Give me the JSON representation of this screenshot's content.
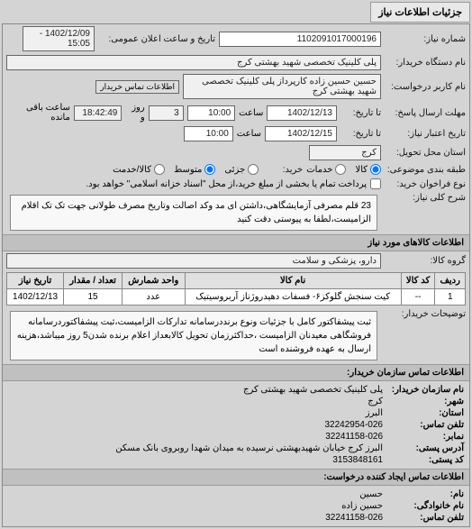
{
  "tab": {
    "title": "جزئیات اطلاعات نیاز"
  },
  "header": {
    "request_no_label": "شماره نیاز:",
    "request_no": "1102091017000196",
    "announce_label": "تاریخ و ساعت اعلان عمومی:",
    "announce_value": "1402/12/09 - 15:05",
    "buyer_label": "نام دستگاه خریدار:",
    "buyer_value": "پلی کلینیک تخصصی شهید بهشتی کرج",
    "requester_label": "نام کاربر درخواست:",
    "requester_value": "حسین حسین زاده کارپرداز پلی کلینیک تخصصی شهید بهشتی کرج",
    "contact_btn": "اطلاعات تماس خریدار",
    "deadline_send_label": "مهلت ارسال پاسخ:",
    "until_label": "تا تاریخ:",
    "deadline_date": "1402/12/13",
    "time_label": "ساعت",
    "deadline_time": "10:00",
    "days_remain_label": "روز و",
    "days_remain": "3",
    "time_remain": "18:42:49",
    "time_remain_label": "ساعت باقی مانده",
    "validity_label": "تاریخ اعتبار نیاز:",
    "validity_date": "1402/12/15",
    "validity_time": "10:00",
    "delivery_label": "استان محل تحویل:",
    "delivery_value": "کرج",
    "budget_label": "طبقه بندی موضوعی:",
    "budget_opts": {
      "kala": "کالا",
      "khadamat": "خدمات"
    },
    "currency_label": "خرید:",
    "currency_opts": {
      "jozi": "جزئی",
      "motavaset": "متوسط",
      "kalan": "کالا/خدمت"
    },
    "payment_label": "نوع فراخوان خرید:",
    "payment_note": "پرداخت تمام یا بخشی از مبلغ خرید،از محل \"اسناد خزانه اسلامی\" خواهد بود.",
    "subject_label": "شرح کلی نیاز:",
    "subject_value": "23 قلم مصرفی آزمایشگاهی،داشتن ای مد وکد اصالت وتاریخ مصرف طولانی جهت تک تک اقلام الزامیست،لطفا به پیوستی دقت کنید"
  },
  "goods": {
    "section_title": "اطلاعات کالاهای مورد نیاز",
    "group_label": "گروه کالا:",
    "group_value": "دارو، پزشکی و سلامت",
    "table": {
      "headers": [
        "ردیف",
        "کد کالا",
        "نام کالا",
        "واحد شمارش",
        "تعداد / مقدار",
        "تاریخ نیاز"
      ],
      "rows": [
        [
          "1",
          "--",
          "کیت سنجش گلوکز۶- فسفات دهیدروژناز آربروسیتیک",
          "عدد",
          "15",
          "1402/12/13"
        ]
      ]
    },
    "notes_label": "توضیحات خریدار:",
    "notes_value": "ثبت پیشفاکتور کامل با جزئیات ونوع برنددرسامانه تدارکات الزامیست،ثبت پیشفاکتوردرسامانه فروشگاهی معیدنان الزامیست ،حداکثرزمان تحویل کالابعداز اعلام برنده شدن5 روز میباشد،هزینه ارسال به عهده فروشنده است"
  },
  "contact": {
    "section_title": "اطلاعات تماس سازمان خریدار:",
    "org_label": "نام سازمان خریدار:",
    "org_value": "پلی کلینیک تخصصی شهید بهشتی کرج",
    "city_label": "شهر:",
    "city_value": "کرج",
    "province_label": "استان:",
    "province_value": "البرز",
    "phone_label": "تلفن تماس:",
    "phone_value": "32242954-026",
    "fax_label": "نمابر:",
    "fax_value": "32241158-026",
    "address_label": "آدرس پستی:",
    "address_value": "البرز کرج خیابان شهیدبهشتی نرسیده به میدان شهدا روبروی بانک مسکن",
    "postal_label": "کد پستی:",
    "postal_value": "3153848161",
    "creator_title": "اطلاعات تماس ایجاد کننده درخواست:",
    "fname_label": "نام:",
    "fname_value": "حسین",
    "lname_label": "نام خانوادگی:",
    "lname_value": "حسین زاده",
    "creator_phone_label": "تلفن تماس:",
    "creator_phone_value": "32241158-026"
  }
}
